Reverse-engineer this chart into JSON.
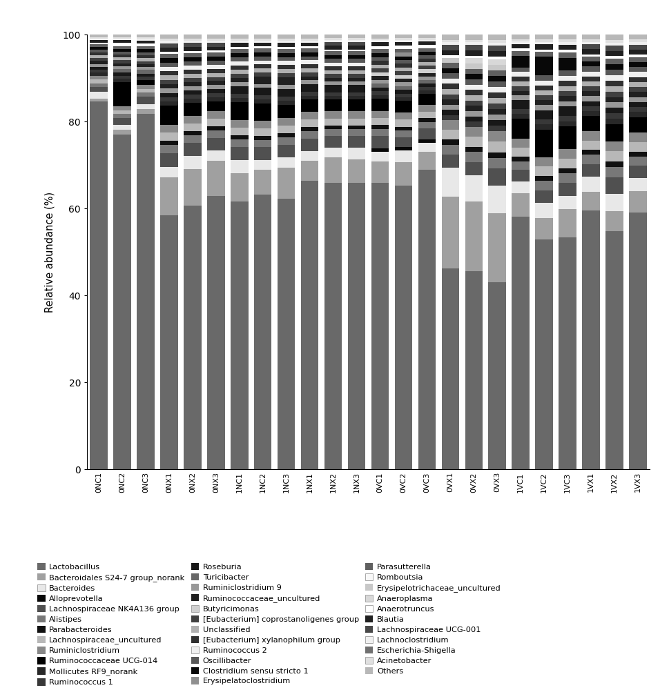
{
  "samples": [
    "0NC1",
    "0NC2",
    "0NC3",
    "0NX1",
    "0NX2",
    "0NX3",
    "1NC1",
    "1NC2",
    "1NC3",
    "1NX1",
    "1NX2",
    "1NX3",
    "0VC1",
    "0VC2",
    "0VC3",
    "0VX1",
    "0VX2",
    "0VX3",
    "1VC1",
    "1VC2",
    "1VC3",
    "1VX1",
    "1VX2",
    "1VX3"
  ],
  "taxa": [
    "Lactobacillus",
    "Bacteroidales S24-7 group_norank",
    "Bacteroides",
    "Alloprevotella",
    "Lachnospiraceae NK4A136 group",
    "Alistipes",
    "Parabacteroides",
    "Lachnospiraceae_uncultured",
    "Ruminiclostridium",
    "Ruminococcaceae UCG-014",
    "Mollicutes RF9_norank",
    "Ruminococcus 1",
    "Roseburia",
    "Turicibacter",
    "Ruminiclostridium 9",
    "Ruminococcaceae_uncultured",
    "Butyricimonas",
    "[Eubacterium] coprostanoligenes group",
    "Unclassified",
    "[Eubacterium] xylanophilum group",
    "Ruminococcus 2",
    "Oscillibacter",
    "Clostridium sensu stricto 1",
    "Erysipelatoclostridium",
    "Parasutterella",
    "Romboutsia",
    "Erysipelotrichaceae_uncultured",
    "Anaeroplasma",
    "Anaerotruncus",
    "Blautia",
    "Lachnospiraceae UCG-001",
    "Lachnoclostridium",
    "Escherichia-Shigella",
    "Acinetobacter",
    "Others"
  ],
  "colors": [
    "#696969",
    "#a0a0a0",
    "#e8e8e8",
    "#080808",
    "#505050",
    "#787878",
    "#101010",
    "#b8b8b8",
    "#888888",
    "#000000",
    "#282828",
    "#383838",
    "#181818",
    "#686868",
    "#989898",
    "#202020",
    "#d0d0d0",
    "#404040",
    "#b0b0b0",
    "#303030",
    "#f0f0f0",
    "#585858",
    "#080808",
    "#909090",
    "#606060",
    "#f8f8f8",
    "#c8c8c8",
    "#d8d8d8",
    "#ffffff",
    "#202020",
    "#484848",
    "#f0f0f0",
    "#707070",
    "#e0e0e0",
    "#b8b8b8"
  ],
  "data": {
    "Lactobacillus": [
      79.0,
      70.0,
      72.0,
      47.0,
      51.0,
      54.0,
      52.0,
      55.0,
      53.0,
      58.0,
      61.0,
      61.0,
      60.0,
      61.0,
      68.0,
      31.0,
      30.0,
      27.0,
      43.0,
      37.0,
      36.0,
      42.0,
      35.0,
      41.0
    ],
    "Bacteroidales S24-7 group_norank": [
      0.5,
      1.0,
      1.0,
      7.0,
      7.0,
      7.0,
      5.5,
      5.0,
      6.0,
      4.0,
      5.5,
      5.0,
      4.5,
      5.0,
      4.0,
      11.0,
      10.5,
      10.0,
      4.0,
      3.5,
      4.5,
      3.0,
      3.0,
      3.5
    ],
    "Bacteroides": [
      1.5,
      1.0,
      1.0,
      2.0,
      2.5,
      2.0,
      2.5,
      2.0,
      2.0,
      2.0,
      2.0,
      2.5,
      2.0,
      2.5,
      2.0,
      4.5,
      4.0,
      4.0,
      2.0,
      2.5,
      2.0,
      2.5,
      2.5,
      2.0
    ],
    "Alloprevotella": [
      0.0,
      0.0,
      0.0,
      0.0,
      0.0,
      0.0,
      0.0,
      0.0,
      0.0,
      0.0,
      0.0,
      0.0,
      0.8,
      0.8,
      0.8,
      0.0,
      0.0,
      0.0,
      0.0,
      0.0,
      0.0,
      0.0,
      0.0,
      0.0
    ],
    "Lachnospiraceae NK4A136 group": [
      1.0,
      1.5,
      1.5,
      2.5,
      2.5,
      2.5,
      2.5,
      2.5,
      2.5,
      2.5,
      2.5,
      2.5,
      2.5,
      2.0,
      2.5,
      2.0,
      2.0,
      2.5,
      2.0,
      2.0,
      2.0,
      2.0,
      2.5,
      2.0
    ],
    "Alistipes": [
      0.8,
      0.8,
      0.8,
      1.5,
      1.5,
      1.5,
      1.5,
      1.5,
      1.5,
      1.5,
      1.5,
      1.5,
      1.5,
      1.5,
      1.5,
      1.5,
      1.5,
      1.5,
      1.5,
      1.5,
      1.5,
      1.5,
      1.5,
      1.5
    ],
    "Parabacteroides": [
      0.0,
      0.0,
      0.0,
      0.8,
      0.8,
      0.8,
      0.8,
      0.8,
      0.8,
      0.8,
      0.8,
      0.8,
      0.8,
      0.8,
      0.8,
      0.8,
      0.8,
      0.8,
      0.8,
      0.8,
      0.8,
      0.8,
      0.8,
      0.8
    ],
    "Lachnospiraceae_uncultured": [
      0.8,
      0.8,
      0.8,
      1.5,
      1.5,
      1.5,
      1.5,
      1.5,
      1.5,
      1.5,
      1.5,
      1.5,
      1.5,
      1.5,
      1.5,
      1.5,
      1.5,
      1.5,
      1.5,
      1.5,
      1.5,
      1.5,
      1.5,
      1.5
    ],
    "Ruminiclostridium": [
      0.8,
      0.8,
      0.8,
      1.5,
      1.5,
      1.5,
      1.5,
      1.5,
      1.5,
      1.5,
      1.5,
      1.5,
      1.5,
      1.5,
      1.5,
      1.5,
      1.5,
      1.5,
      1.5,
      1.5,
      1.5,
      1.5,
      1.5,
      1.5
    ],
    "Ruminococcaceae UCG-014": [
      0.0,
      5.0,
      1.0,
      3.5,
      2.5,
      2.0,
      3.5,
      3.5,
      2.5,
      2.5,
      2.5,
      2.5,
      2.5,
      2.5,
      2.5,
      0.0,
      0.0,
      0.0,
      3.5,
      4.5,
      3.5,
      2.5,
      2.5,
      2.5
    ],
    "Mollicutes RF9_norank": [
      0.8,
      0.8,
      0.0,
      0.8,
      0.8,
      0.8,
      0.8,
      0.8,
      0.8,
      0.8,
      0.8,
      0.8,
      0.8,
      0.8,
      0.8,
      0.0,
      0.0,
      0.0,
      0.8,
      0.8,
      0.8,
      0.8,
      0.8,
      0.8
    ],
    "Ruminococcus 1": [
      0.6,
      0.6,
      0.6,
      0.8,
      0.8,
      0.8,
      0.8,
      0.8,
      0.8,
      0.8,
      0.8,
      0.8,
      0.8,
      0.8,
      0.8,
      0.8,
      0.8,
      0.8,
      0.8,
      0.8,
      0.8,
      0.8,
      0.8,
      0.8
    ],
    "Roseburia": [
      0.6,
      0.6,
      0.6,
      0.8,
      0.8,
      0.8,
      1.5,
      1.5,
      1.5,
      1.5,
      1.5,
      1.5,
      0.8,
      0.8,
      0.8,
      0.8,
      0.8,
      0.8,
      1.5,
      1.5,
      1.5,
      0.8,
      0.8,
      0.8
    ],
    "Turicibacter": [
      0.0,
      0.8,
      0.8,
      0.0,
      0.0,
      0.0,
      0.0,
      0.0,
      0.0,
      0.0,
      0.0,
      0.0,
      0.8,
      0.8,
      0.8,
      0.0,
      0.0,
      0.0,
      0.0,
      0.0,
      0.0,
      0.0,
      0.0,
      0.0
    ],
    "Ruminiclostridium 9": [
      0.6,
      0.6,
      0.6,
      0.8,
      0.8,
      0.8,
      0.8,
      0.8,
      0.8,
      0.8,
      0.8,
      0.8,
      0.8,
      0.8,
      0.8,
      0.8,
      0.8,
      0.8,
      0.8,
      0.8,
      0.8,
      0.8,
      0.8,
      0.8
    ],
    "Ruminococcaceae_uncultured": [
      0.6,
      0.6,
      0.6,
      0.8,
      0.8,
      0.8,
      0.8,
      1.5,
      1.5,
      0.8,
      0.8,
      0.8,
      0.8,
      0.8,
      0.8,
      0.8,
      0.8,
      0.8,
      0.8,
      0.8,
      0.8,
      0.8,
      0.8,
      0.8
    ],
    "Butyricimonas": [
      0.0,
      0.0,
      0.0,
      0.0,
      0.0,
      0.0,
      0.0,
      0.0,
      0.0,
      0.0,
      0.0,
      0.0,
      0.8,
      0.8,
      0.8,
      0.0,
      0.0,
      0.0,
      0.0,
      0.0,
      0.0,
      0.0,
      0.0,
      0.0
    ],
    "[Eubacterium] coprostanoligenes group": [
      0.6,
      0.6,
      0.6,
      0.8,
      0.8,
      0.8,
      0.8,
      0.8,
      0.8,
      0.8,
      0.8,
      0.8,
      0.8,
      0.8,
      0.8,
      0.8,
      0.8,
      0.8,
      0.8,
      0.8,
      0.8,
      0.8,
      0.8,
      0.8
    ],
    "Unclassified": [
      0.6,
      0.6,
      0.6,
      0.8,
      0.8,
      0.8,
      0.8,
      0.8,
      0.8,
      0.8,
      0.8,
      0.8,
      0.8,
      0.8,
      0.8,
      0.8,
      0.8,
      0.8,
      0.8,
      0.8,
      0.8,
      0.8,
      0.8,
      0.8
    ],
    "[Eubacterium] xylanophilum group": [
      0.6,
      0.6,
      0.6,
      0.8,
      0.8,
      0.8,
      0.8,
      0.8,
      0.8,
      0.8,
      0.8,
      0.8,
      0.8,
      0.8,
      0.8,
      0.8,
      0.8,
      0.8,
      0.8,
      0.8,
      0.8,
      0.8,
      0.8,
      0.8
    ],
    "Ruminococcus 2": [
      0.0,
      0.0,
      0.0,
      0.8,
      0.8,
      0.8,
      0.8,
      0.8,
      0.8,
      0.8,
      0.8,
      0.8,
      0.0,
      0.0,
      0.0,
      0.8,
      0.8,
      0.8,
      0.8,
      0.8,
      0.8,
      0.8,
      0.8,
      0.8
    ],
    "Oscillibacter": [
      0.6,
      0.6,
      0.6,
      0.8,
      0.8,
      0.8,
      0.8,
      0.8,
      0.8,
      0.8,
      0.8,
      0.8,
      0.8,
      0.8,
      0.8,
      0.8,
      0.8,
      0.8,
      0.8,
      0.8,
      0.8,
      0.8,
      0.8,
      0.8
    ],
    "Clostridium sensu stricto 1": [
      0.6,
      0.6,
      0.6,
      0.8,
      0.8,
      0.8,
      0.8,
      0.8,
      0.8,
      0.8,
      0.8,
      0.8,
      0.8,
      0.8,
      0.8,
      0.8,
      0.8,
      0.8,
      2.0,
      3.0,
      2.0,
      0.8,
      0.8,
      0.8
    ],
    "Erysipelatoclostridium": [
      0.0,
      0.0,
      0.0,
      0.0,
      0.0,
      0.0,
      0.0,
      0.0,
      0.0,
      0.0,
      0.0,
      0.0,
      0.0,
      0.8,
      0.0,
      0.0,
      0.0,
      0.0,
      0.0,
      0.0,
      0.0,
      0.0,
      0.0,
      0.0
    ],
    "Parasutterella": [
      0.6,
      0.6,
      0.6,
      0.8,
      0.8,
      0.8,
      0.8,
      0.8,
      0.8,
      0.8,
      0.8,
      0.8,
      0.8,
      0.8,
      0.8,
      0.8,
      0.8,
      0.8,
      0.8,
      0.8,
      0.8,
      0.8,
      0.8,
      0.8
    ],
    "Romboutsia": [
      0.0,
      0.3,
      0.3,
      0.0,
      0.0,
      0.0,
      0.0,
      0.0,
      0.0,
      0.0,
      0.0,
      0.0,
      0.3,
      0.3,
      0.3,
      0.0,
      0.0,
      0.0,
      0.0,
      0.0,
      0.0,
      0.0,
      0.0,
      0.0
    ],
    "Erysipelotrichaceae_uncultured": [
      0.0,
      0.0,
      0.0,
      0.0,
      0.0,
      0.0,
      0.0,
      0.0,
      0.0,
      0.0,
      0.0,
      0.0,
      0.0,
      0.0,
      0.0,
      0.8,
      0.8,
      0.8,
      0.0,
      0.0,
      0.0,
      0.0,
      0.0,
      0.0
    ],
    "Anaeroplasma": [
      0.0,
      0.0,
      0.0,
      0.0,
      0.0,
      0.0,
      0.0,
      0.0,
      0.0,
      0.0,
      0.0,
      0.0,
      0.0,
      0.0,
      0.0,
      0.0,
      0.8,
      0.8,
      0.0,
      0.0,
      0.0,
      0.0,
      0.0,
      0.0
    ],
    "Anaerotruncus": [
      0.3,
      0.3,
      0.3,
      0.4,
      0.4,
      0.4,
      0.4,
      0.4,
      0.4,
      0.4,
      0.4,
      0.4,
      0.4,
      0.4,
      0.4,
      0.4,
      0.4,
      0.4,
      0.4,
      0.4,
      0.4,
      0.4,
      0.4,
      0.4
    ],
    "Blautia": [
      0.6,
      0.6,
      0.6,
      0.8,
      0.8,
      0.8,
      0.8,
      0.8,
      0.8,
      0.8,
      0.8,
      0.8,
      0.8,
      0.8,
      0.8,
      0.8,
      0.8,
      0.8,
      0.8,
      0.8,
      0.8,
      0.8,
      0.8,
      0.8
    ],
    "Lachnospiraceae UCG-001": [
      0.0,
      0.0,
      0.0,
      0.8,
      0.8,
      0.8,
      0.0,
      0.0,
      0.0,
      0.0,
      0.8,
      0.8,
      0.0,
      0.0,
      0.0,
      0.8,
      0.8,
      0.8,
      0.0,
      0.0,
      0.0,
      0.8,
      0.8,
      0.8
    ],
    "Lachnoclostridium": [
      0.3,
      0.3,
      0.3,
      0.4,
      0.4,
      0.4,
      0.4,
      0.4,
      0.4,
      0.4,
      0.4,
      0.4,
      0.4,
      0.4,
      0.4,
      0.4,
      0.4,
      0.4,
      0.4,
      0.4,
      0.4,
      0.4,
      0.4,
      0.4
    ],
    "Escherichia-Shigella": [
      0.0,
      0.0,
      0.0,
      0.0,
      0.0,
      0.0,
      0.0,
      0.0,
      0.0,
      0.0,
      0.0,
      0.0,
      0.0,
      0.0,
      0.0,
      0.0,
      0.0,
      0.0,
      0.0,
      0.0,
      0.0,
      0.0,
      0.0,
      0.0
    ],
    "Acinetobacter": [
      0.3,
      0.3,
      0.3,
      0.4,
      0.4,
      0.4,
      0.4,
      0.4,
      0.4,
      0.4,
      0.4,
      0.4,
      0.4,
      0.4,
      0.4,
      0.4,
      0.4,
      0.4,
      0.4,
      0.4,
      0.4,
      0.4,
      0.4,
      0.4
    ],
    "Others": [
      0.6,
      0.6,
      0.6,
      0.8,
      0.8,
      0.8,
      0.8,
      0.8,
      0.8,
      0.8,
      0.8,
      0.8,
      0.8,
      0.8,
      0.8,
      0.8,
      0.8,
      0.8,
      0.8,
      0.8,
      0.8,
      0.8,
      0.8,
      0.8
    ]
  },
  "ylabel": "Relative abundance (%)",
  "ylim": [
    0,
    100
  ],
  "yticks": [
    0,
    20,
    40,
    60,
    80,
    100
  ],
  "figure_bg": "#ffffff",
  "bar_width": 0.75,
  "legend_labels": [
    "Lactobacillus",
    "Bacteroidales S24-7 group_norank",
    "Bacteroides",
    "Alloprevotella",
    "Lachnospiraceae NK4A136 group",
    "Alistipes",
    "Parabacteroides",
    "Lachnospiraceae_uncultured",
    "Ruminiclostridium",
    "Ruminococcaceae UCG-014",
    "Mollicutes RF9_norank",
    "Ruminococcus 1",
    "Roseburia",
    "Turicibacter",
    "Ruminiclostridium 9",
    "Ruminococcaceae_uncultured",
    "Butyricimonas",
    "[Eubacterium] coprostanoligenes group",
    "Unclassified",
    "[Eubacterium] xylanophilum group",
    "Ruminococcus 2",
    "Oscillibacter",
    "Clostridium sensu stricto 1",
    "Erysipelatoclostridium",
    "Parasutterella",
    "Romboutsia",
    "Erysipelotrichaceae_uncultured",
    "Anaeroplasma",
    "Anaerotruncus",
    "Blautia",
    "Lachnospiraceae UCG-001",
    "Lachnoclostridium",
    "Escherichia-Shigella",
    "Acinetobacter",
    "Others"
  ]
}
